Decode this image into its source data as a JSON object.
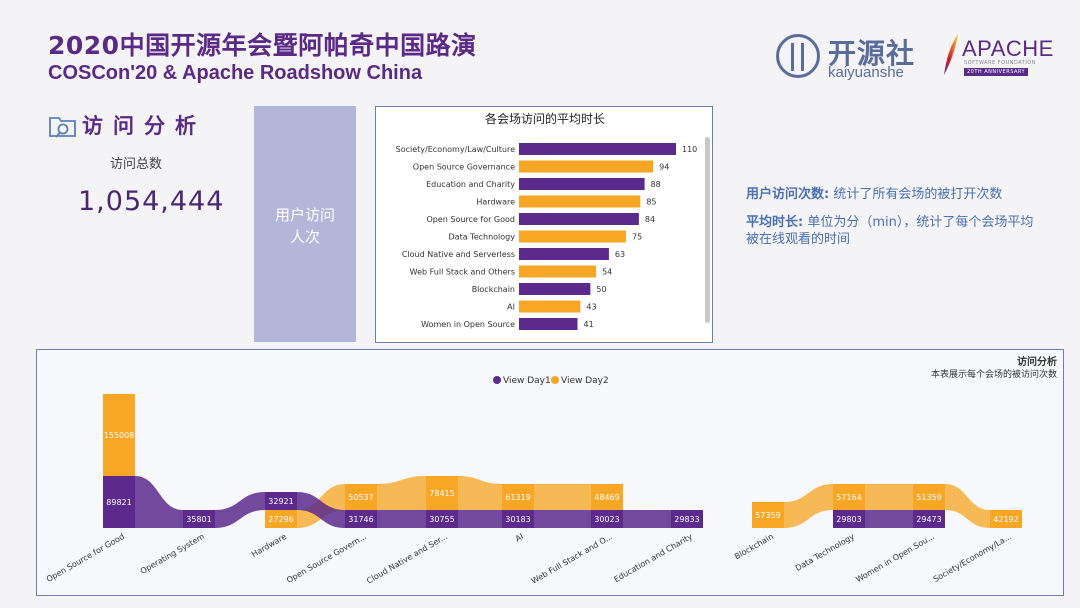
{
  "header": {
    "title_zh": "2020中国开源年会暨阿帕奇中国路演",
    "title_en": "COSCon'20 & Apache Roadshow China"
  },
  "logos": {
    "kaiyuanshe_zh": "开源社",
    "kaiyuanshe_en": "kaiyuanshe",
    "apache_word": "APACHE",
    "apache_sub": "SOFTWARE FOUNDATION",
    "apache_anniv": "20TH ANNIVERSARY",
    "colors": {
      "purple": "#5b2a86",
      "slate": "#5a6d9a"
    }
  },
  "summary": {
    "section_title": "访问分析",
    "total_label": "访问总数",
    "total_value": "1,054,444",
    "user_visits_box": "用户访问人次"
  },
  "notes": {
    "visit_count_term": "用户访问次数:",
    "visit_count_desc": "统计了所有会场的被打开次数",
    "avg_time_term": "平均时长:",
    "avg_time_desc": "单位为分（min），统计了每个会场平均被在线观看的时间"
  },
  "chart_data": [
    {
      "type": "bar",
      "orientation": "horizontal",
      "title": "各会场访问的平均时长",
      "categories": [
        "Society/Economy/Law/Culture",
        "Open Source Governance",
        "Education and Charity",
        "Hardware",
        "Open Source for Good",
        "Data Technology",
        "Cloud Native and Serverless",
        "Web Full Stack and Others",
        "Blockchain",
        "AI",
        "Women in Open Source"
      ],
      "values": [
        110,
        94,
        88,
        85,
        84,
        75,
        63,
        54,
        50,
        43,
        41
      ],
      "colors": [
        "#5b2a8c",
        "#f7a626",
        "#5b2a8c",
        "#f7a626",
        "#5b2a8c",
        "#f7a626",
        "#5b2a8c",
        "#f7a626",
        "#5b2a8c",
        "#f7a626",
        "#5b2a8c"
      ],
      "xlim": [
        0,
        110
      ],
      "grid": false
    },
    {
      "type": "area",
      "title": "访问分析",
      "subtitle": "本表展示每个会场的被访问次数",
      "legend_position": "top-center",
      "categories": [
        "Open Source for Good",
        "Operating System",
        "Hardware",
        "Open Source Govern...",
        "Cloud Native and Ser...",
        "AI",
        "Web Full Stack and O...",
        "Education and Charity",
        "Blockchain",
        "Data Technology",
        "Women in Open Sou...",
        "Society/Economy/La..."
      ],
      "series": [
        {
          "name": "View Day1",
          "color": "#5b2a8c",
          "values": [
            89821,
            35801,
            32921,
            31746,
            30755,
            30183,
            30023,
            29833,
            null,
            29803,
            29473,
            null
          ],
          "labels": [
            "89821",
            "35801",
            "32921",
            "31746",
            "30755",
            "30183",
            "30023",
            "29833",
            "",
            "29803",
            "29473",
            ""
          ]
        },
        {
          "name": "View Day2",
          "color": "#f7a626",
          "values": [
            155008,
            null,
            27296,
            50537,
            78415,
            61319,
            48469,
            null,
            57359,
            57164,
            51359,
            42192
          ],
          "labels": [
            "155008",
            "",
            "27296",
            "50537",
            "78415",
            "61319",
            "48469",
            "",
            "57359",
            "57164",
            "51359",
            "42192"
          ]
        }
      ]
    }
  ]
}
